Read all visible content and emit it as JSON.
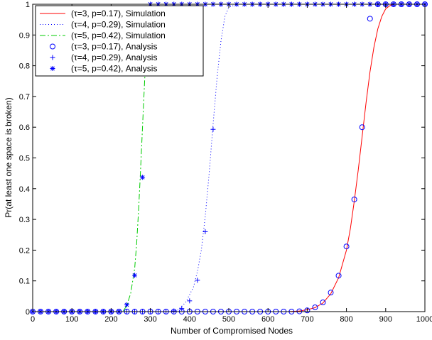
{
  "chart_data": {
    "type": "line",
    "xlabel": "Number of Compromised Nodes",
    "ylabel": "Pr(at least one space is broken)",
    "xlim": [
      0,
      1000
    ],
    "ylim": [
      0,
      1
    ],
    "xticks": [
      "0",
      "100",
      "200",
      "300",
      "400",
      "500",
      "600",
      "700",
      "800",
      "900",
      "1000"
    ],
    "yticks": [
      "0",
      "0.1",
      "0.2",
      "0.3",
      "0.4",
      "0.5",
      "0.6",
      "0.7",
      "0.8",
      "0.9",
      "1"
    ],
    "grid": false,
    "legend_position": "top-left",
    "series": [
      {
        "name": "(τ=3, p=0.17), Simulation",
        "style": "solid",
        "color": "#ff0000",
        "marker": "none",
        "x": [
          0,
          650,
          680,
          700,
          720,
          740,
          760,
          780,
          800,
          810,
          820,
          830,
          840,
          850,
          860,
          870,
          880,
          890,
          900,
          910,
          920,
          1000
        ],
        "y": [
          0,
          0,
          0.002,
          0.006,
          0.013,
          0.028,
          0.058,
          0.11,
          0.2,
          0.27,
          0.36,
          0.46,
          0.57,
          0.68,
          0.78,
          0.86,
          0.92,
          0.96,
          0.985,
          0.995,
          1,
          1
        ]
      },
      {
        "name": "(τ=4, p=0.29), Simulation",
        "style": "dotted",
        "color": "#0000ff",
        "marker": "none",
        "x": [
          0,
          350,
          370,
          390,
          410,
          420,
          430,
          440,
          450,
          460,
          470,
          480,
          490,
          500,
          520,
          1000
        ],
        "y": [
          0,
          0,
          0.005,
          0.03,
          0.08,
          0.13,
          0.2,
          0.31,
          0.45,
          0.61,
          0.76,
          0.88,
          0.96,
          0.99,
          1,
          1
        ]
      },
      {
        "name": "(τ=5, p=0.42), Simulation",
        "style": "dashdot",
        "color": "#00cc00",
        "marker": "none",
        "x": [
          0,
          230,
          240,
          250,
          260,
          265,
          270,
          275,
          280,
          285,
          290,
          295,
          300,
          1000
        ],
        "y": [
          0,
          0,
          0.02,
          0.06,
          0.14,
          0.22,
          0.33,
          0.46,
          0.6,
          0.74,
          0.87,
          0.95,
          1,
          1
        ]
      },
      {
        "name": "(τ=3, p=0.17), Analysis",
        "style": "none",
        "color": "#0000ff",
        "marker": "circle",
        "x": [
          0,
          20,
          40,
          60,
          80,
          100,
          120,
          140,
          160,
          180,
          200,
          220,
          240,
          260,
          280,
          300,
          320,
          340,
          360,
          380,
          400,
          420,
          440,
          460,
          480,
          500,
          520,
          540,
          560,
          580,
          600,
          620,
          640,
          660,
          680,
          700,
          720,
          740,
          760,
          780,
          800,
          820,
          840,
          860,
          880,
          900,
          920,
          940,
          960,
          980,
          1000
        ],
        "y": [
          0,
          0,
          0,
          0,
          0,
          0,
          0,
          0,
          0,
          0,
          0,
          0,
          0,
          0,
          0,
          0,
          0,
          0,
          0,
          0,
          0,
          0,
          0,
          0,
          0,
          0,
          0,
          0,
          0,
          0,
          0,
          0,
          0,
          0,
          0.001,
          0.004,
          0.014,
          0.03,
          0.062,
          0.117,
          0.212,
          0.365,
          0.6,
          0.953,
          1,
          1,
          1,
          1,
          1,
          1,
          1
        ]
      },
      {
        "name": "(τ=4, p=0.29), Analysis",
        "style": "none",
        "color": "#0000ff",
        "marker": "plus",
        "x": [
          0,
          20,
          40,
          60,
          80,
          100,
          120,
          140,
          160,
          180,
          200,
          220,
          240,
          260,
          280,
          300,
          320,
          340,
          360,
          380,
          400,
          420,
          440,
          460,
          480,
          500,
          520,
          540,
          560,
          580,
          600,
          620,
          640,
          660,
          680,
          700,
          720,
          740,
          760,
          780,
          800,
          820,
          840,
          860,
          880,
          900,
          920,
          940,
          960,
          980,
          1000
        ],
        "y": [
          0,
          0,
          0,
          0,
          0,
          0,
          0,
          0,
          0,
          0,
          0,
          0,
          0,
          0,
          0,
          0,
          0,
          0,
          0.002,
          0.01,
          0.035,
          0.102,
          0.26,
          0.593,
          1,
          1,
          1,
          1,
          1,
          1,
          1,
          1,
          1,
          1,
          1,
          1,
          1,
          1,
          1,
          1,
          1,
          1,
          1,
          1,
          1,
          1,
          1,
          1,
          1,
          1,
          1
        ]
      },
      {
        "name": "(τ=5, p=0.42), Analysis",
        "style": "none",
        "color": "#0000ff",
        "marker": "star",
        "x": [
          0,
          20,
          40,
          60,
          80,
          100,
          120,
          140,
          160,
          180,
          200,
          220,
          240,
          260,
          280,
          300,
          320,
          340,
          360,
          380,
          400,
          420,
          440,
          460,
          480,
          500,
          520,
          540,
          560,
          580,
          600,
          620,
          640,
          660,
          680,
          700,
          720,
          740,
          760,
          780,
          800,
          820,
          840,
          860,
          880,
          900,
          920,
          940,
          960,
          980,
          1000
        ],
        "y": [
          0,
          0,
          0,
          0,
          0,
          0,
          0,
          0,
          0,
          0,
          0,
          0,
          0.022,
          0.118,
          0.437,
          1,
          1,
          1,
          1,
          1,
          1,
          1,
          1,
          1,
          1,
          1,
          1,
          1,
          1,
          1,
          1,
          1,
          1,
          1,
          1,
          1,
          1,
          1,
          1,
          1,
          1,
          1,
          1,
          1,
          1,
          1,
          1,
          1,
          1,
          1,
          1
        ]
      }
    ]
  }
}
